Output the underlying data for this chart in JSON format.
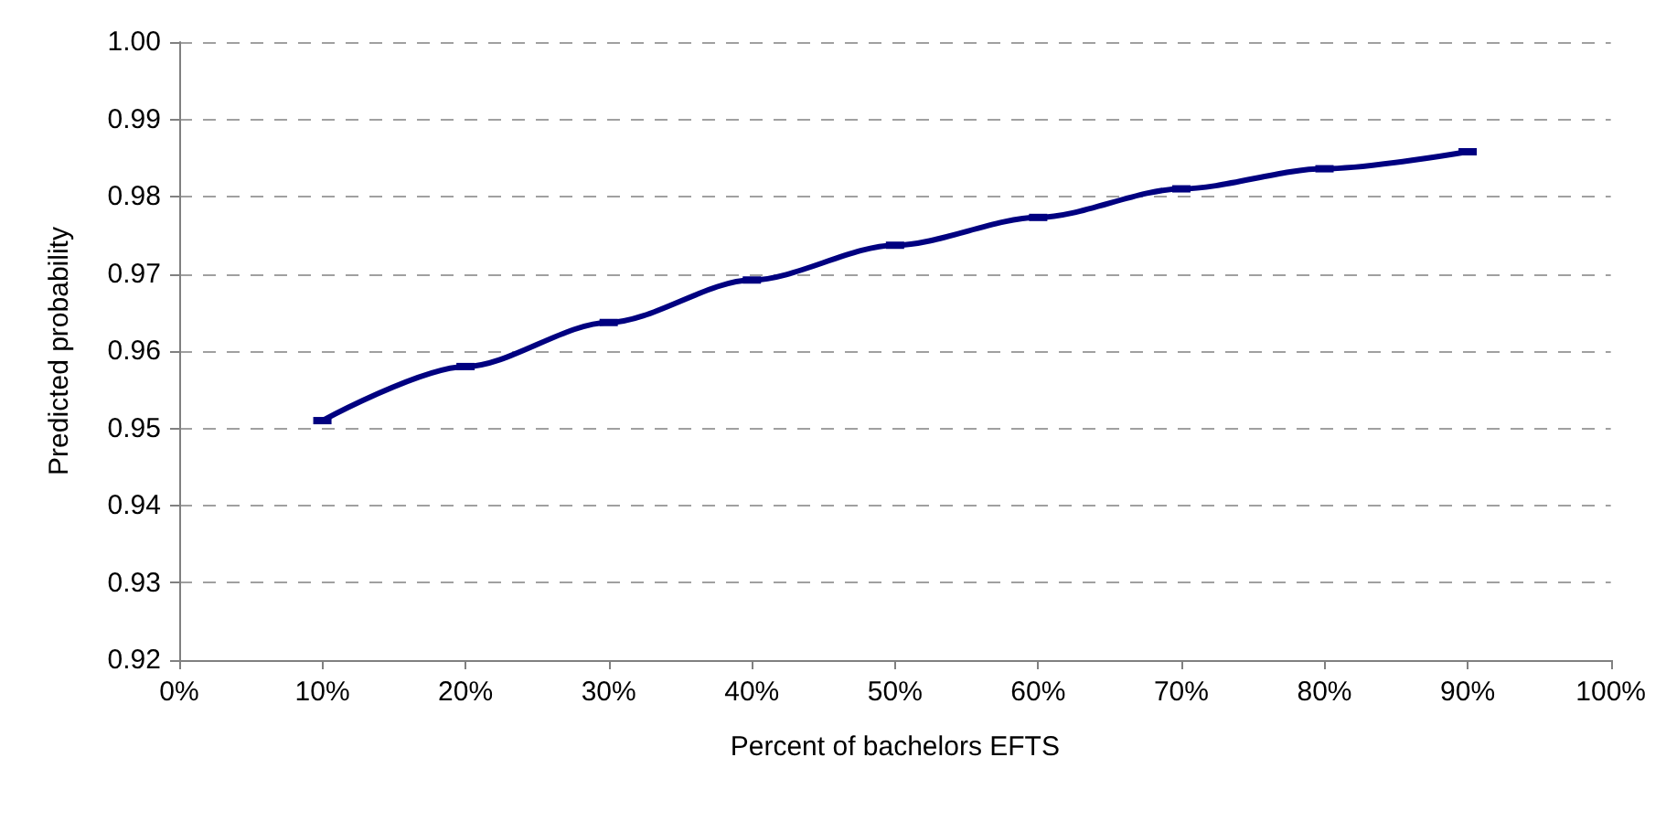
{
  "chart_data": {
    "type": "line",
    "xlabel": "Percent of bachelors EFTS",
    "ylabel": "Predicted probability",
    "x": [
      10,
      20,
      30,
      40,
      50,
      60,
      70,
      80,
      90
    ],
    "series": [
      {
        "color": "#000080",
        "values": [
          0.951,
          0.958,
          0.9637,
          0.9692,
          0.9737,
          0.9773,
          0.981,
          0.9836,
          0.9858
        ]
      }
    ],
    "xlim": [
      0,
      100
    ],
    "xticks": [
      {
        "value": 0,
        "label": "0%"
      },
      {
        "value": 10,
        "label": "10%"
      },
      {
        "value": 20,
        "label": "20%"
      },
      {
        "value": 30,
        "label": "30%"
      },
      {
        "value": 40,
        "label": "40%"
      },
      {
        "value": 50,
        "label": "50%"
      },
      {
        "value": 60,
        "label": "60%"
      },
      {
        "value": 70,
        "label": "70%"
      },
      {
        "value": 80,
        "label": "80%"
      },
      {
        "value": 90,
        "label": "90%"
      },
      {
        "value": 100,
        "label": "100%"
      }
    ],
    "ylim": [
      0.92,
      1
    ],
    "yticks": [
      {
        "value": 0.92,
        "label": "0.92"
      },
      {
        "value": 0.93,
        "label": "0.93"
      },
      {
        "value": 0.94,
        "label": "0.94"
      },
      {
        "value": 0.95,
        "label": "0.95"
      },
      {
        "value": 0.96,
        "label": "0.96"
      },
      {
        "value": 0.97,
        "label": "0.97"
      },
      {
        "value": 0.98,
        "label": "0.98"
      },
      {
        "value": 0.99,
        "label": "0.99"
      },
      {
        "value": 1,
        "label": "1.00"
      }
    ],
    "grid": "y",
    "marker": "square",
    "line_style": "solid"
  }
}
